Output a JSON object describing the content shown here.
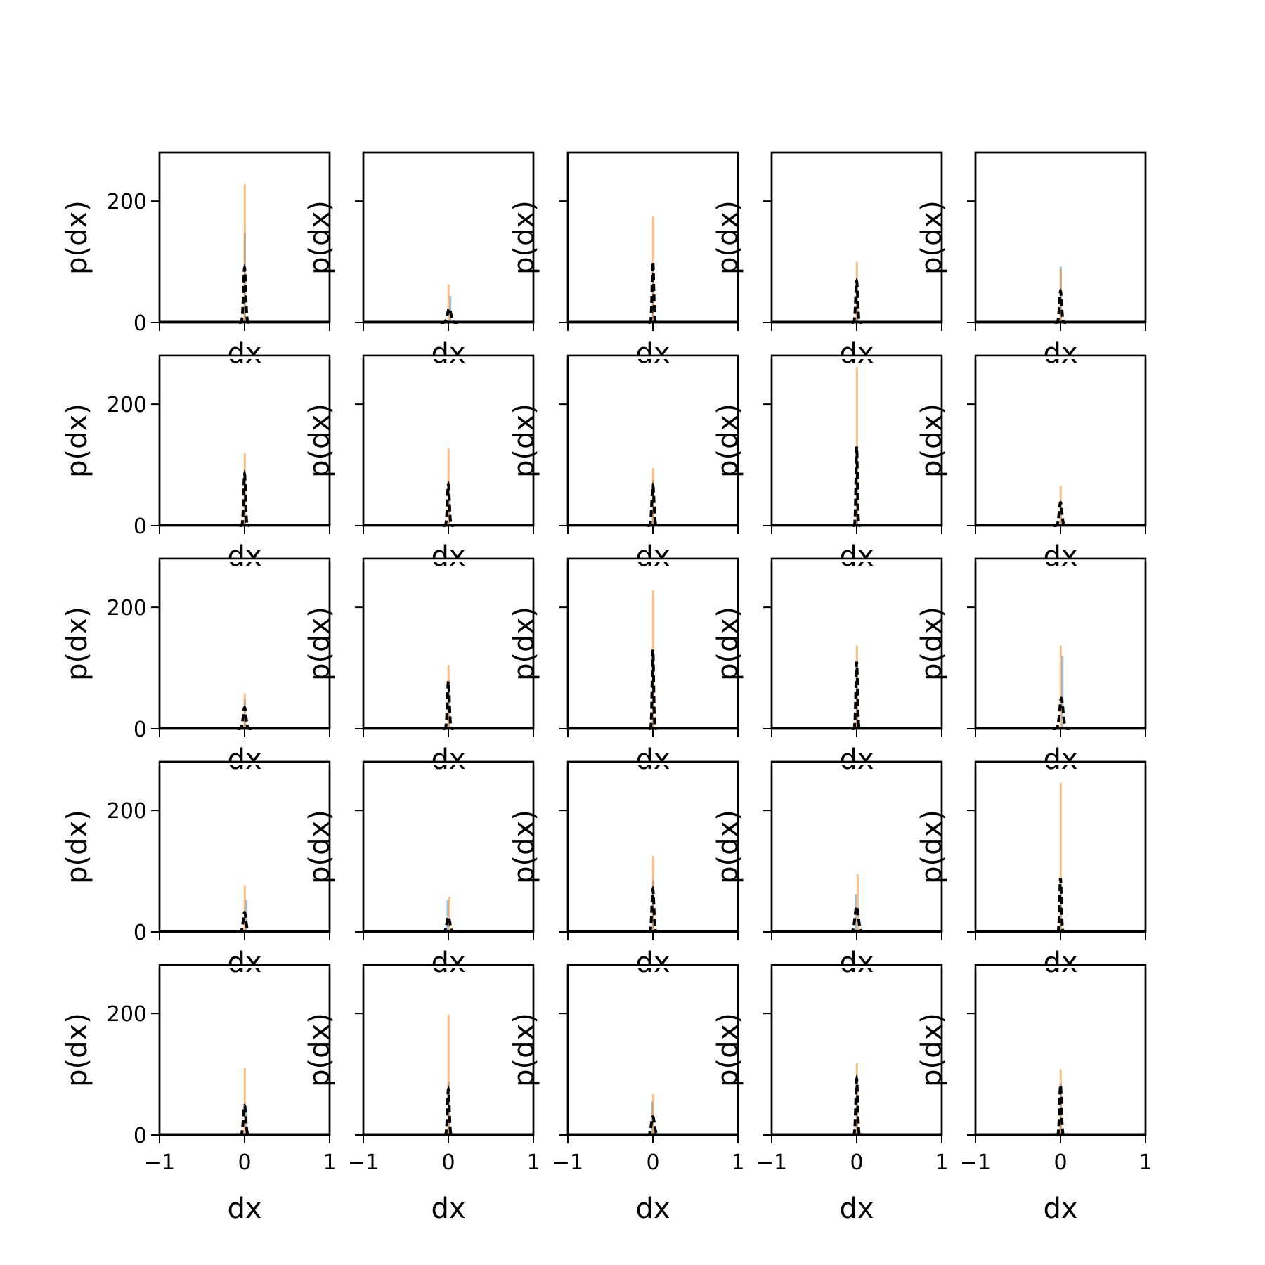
{
  "figure": {
    "grid_rows": 5,
    "grid_cols": 5,
    "colors": {
      "blue_hist": "#1f77b4",
      "orange_hist": "#ff7f0e",
      "dashed_curve": "#000000",
      "frame": "#000000",
      "background": "#ffffff"
    }
  },
  "chart_data": {
    "type": "histogram-grid",
    "shared_axes": {
      "xlabel": "dx",
      "ylabel": "p(dx)",
      "xlim": [
        -1,
        1
      ],
      "ylim": [
        0,
        280
      ],
      "xticks": [
        -1,
        0,
        1
      ],
      "xtick_labels": [
        "−1",
        "0",
        "1"
      ],
      "yticks": [
        0,
        200
      ],
      "ytick_labels": [
        "0",
        "200"
      ],
      "grid": false,
      "legend": "none"
    },
    "series_style": [
      {
        "key": "blue",
        "kind": "histogram",
        "color": "#1f77b4",
        "alpha": 0.45
      },
      {
        "key": "orange",
        "kind": "histogram",
        "color": "#ff7f0e",
        "alpha": 0.5
      },
      {
        "key": "curve",
        "kind": "dashed-line",
        "color": "#000000"
      }
    ],
    "panels": [
      {
        "row": 0,
        "col": 0,
        "blue": {
          "center": 0.0,
          "width": 0.02,
          "height": 148
        },
        "orange": {
          "center": 0.0,
          "width": 0.02,
          "height": 228
        },
        "curve": {
          "center": 0.0,
          "sigma": 0.013,
          "height": 90
        }
      },
      {
        "row": 0,
        "col": 1,
        "blue": {
          "center": 0.02,
          "width": 0.02,
          "height": 44
        },
        "orange": {
          "center": 0.0,
          "width": 0.02,
          "height": 63
        },
        "curve": {
          "center": 0.01,
          "sigma": 0.02,
          "height": 23
        }
      },
      {
        "row": 0,
        "col": 2,
        "blue": {
          "center": 0.0,
          "width": 0.02,
          "height": 92
        },
        "orange": {
          "center": 0.0,
          "width": 0.02,
          "height": 175
        },
        "curve": {
          "center": 0.0,
          "sigma": 0.01,
          "height": 100
        }
      },
      {
        "row": 0,
        "col": 3,
        "blue": {
          "center": 0.0,
          "width": 0.02,
          "height": 70
        },
        "orange": {
          "center": 0.0,
          "width": 0.02,
          "height": 100
        },
        "curve": {
          "center": 0.0,
          "sigma": 0.012,
          "height": 68
        }
      },
      {
        "row": 0,
        "col": 4,
        "blue": {
          "center": 0.0,
          "width": 0.02,
          "height": 92
        },
        "orange": {
          "center": 0.0,
          "width": 0.02,
          "height": 88
        },
        "curve": {
          "center": 0.0,
          "sigma": 0.013,
          "height": 52
        }
      },
      {
        "row": 1,
        "col": 0,
        "blue": {
          "center": 0.0,
          "width": 0.02,
          "height": 85
        },
        "orange": {
          "center": 0.0,
          "width": 0.02,
          "height": 120
        },
        "curve": {
          "center": 0.0,
          "sigma": 0.011,
          "height": 85
        }
      },
      {
        "row": 1,
        "col": 1,
        "blue": {
          "center": 0.0,
          "width": 0.02,
          "height": 72
        },
        "orange": {
          "center": 0.0,
          "width": 0.02,
          "height": 127
        },
        "curve": {
          "center": 0.0,
          "sigma": 0.012,
          "height": 68
        }
      },
      {
        "row": 1,
        "col": 2,
        "blue": {
          "center": 0.0,
          "width": 0.02,
          "height": 75
        },
        "orange": {
          "center": 0.0,
          "width": 0.02,
          "height": 95
        },
        "curve": {
          "center": 0.0,
          "sigma": 0.013,
          "height": 66
        }
      },
      {
        "row": 1,
        "col": 3,
        "blue": {
          "center": 0.0,
          "width": 0.02,
          "height": 128
        },
        "orange": {
          "center": 0.0,
          "width": 0.02,
          "height": 262
        },
        "curve": {
          "center": 0.0,
          "sigma": 0.009,
          "height": 130
        }
      },
      {
        "row": 1,
        "col": 4,
        "blue": {
          "center": 0.0,
          "width": 0.02,
          "height": 40
        },
        "orange": {
          "center": 0.0,
          "width": 0.02,
          "height": 65
        },
        "curve": {
          "center": 0.0,
          "sigma": 0.016,
          "height": 38
        }
      },
      {
        "row": 2,
        "col": 0,
        "blue": {
          "center": 0.0,
          "width": 0.02,
          "height": 48
        },
        "orange": {
          "center": 0.0,
          "width": 0.02,
          "height": 58
        },
        "curve": {
          "center": 0.0,
          "sigma": 0.016,
          "height": 35
        }
      },
      {
        "row": 2,
        "col": 1,
        "blue": {
          "center": 0.0,
          "width": 0.02,
          "height": 80
        },
        "orange": {
          "center": 0.0,
          "width": 0.02,
          "height": 105
        },
        "curve": {
          "center": 0.0,
          "sigma": 0.012,
          "height": 78
        }
      },
      {
        "row": 2,
        "col": 2,
        "blue": {
          "center": 0.0,
          "width": 0.02,
          "height": 130
        },
        "orange": {
          "center": 0.0,
          "width": 0.02,
          "height": 228
        },
        "curve": {
          "center": 0.0,
          "sigma": 0.009,
          "height": 130
        }
      },
      {
        "row": 2,
        "col": 3,
        "blue": {
          "center": 0.0,
          "width": 0.02,
          "height": 112
        },
        "orange": {
          "center": 0.0,
          "width": 0.02,
          "height": 137
        },
        "curve": {
          "center": 0.0,
          "sigma": 0.01,
          "height": 110
        }
      },
      {
        "row": 2,
        "col": 4,
        "blue": {
          "center": 0.02,
          "width": 0.02,
          "height": 120
        },
        "orange": {
          "center": 0.0,
          "width": 0.02,
          "height": 137
        },
        "curve": {
          "center": 0.01,
          "sigma": 0.02,
          "height": 50
        }
      },
      {
        "row": 3,
        "col": 0,
        "blue": {
          "center": 0.02,
          "width": 0.02,
          "height": 52
        },
        "orange": {
          "center": 0.0,
          "width": 0.02,
          "height": 77
        },
        "curve": {
          "center": 0.0,
          "sigma": 0.016,
          "height": 32
        }
      },
      {
        "row": 3,
        "col": 1,
        "blue": {
          "center": -0.01,
          "width": 0.02,
          "height": 52
        },
        "orange": {
          "center": 0.01,
          "width": 0.02,
          "height": 58
        },
        "curve": {
          "center": 0.0,
          "sigma": 0.018,
          "height": 25
        }
      },
      {
        "row": 3,
        "col": 2,
        "blue": {
          "center": 0.0,
          "width": 0.02,
          "height": 85
        },
        "orange": {
          "center": 0.0,
          "width": 0.02,
          "height": 125
        },
        "curve": {
          "center": 0.0,
          "sigma": 0.012,
          "height": 70
        }
      },
      {
        "row": 3,
        "col": 3,
        "blue": {
          "center": -0.01,
          "width": 0.02,
          "height": 62
        },
        "orange": {
          "center": 0.01,
          "width": 0.02,
          "height": 95
        },
        "curve": {
          "center": 0.0,
          "sigma": 0.02,
          "height": 42
        }
      },
      {
        "row": 3,
        "col": 4,
        "blue": {
          "center": 0.0,
          "width": 0.02,
          "height": 78
        },
        "orange": {
          "center": 0.0,
          "width": 0.02,
          "height": 245
        },
        "curve": {
          "center": 0.0,
          "sigma": 0.01,
          "height": 88
        }
      },
      {
        "row": 4,
        "col": 0,
        "blue": {
          "center": 0.02,
          "width": 0.02,
          "height": 48
        },
        "orange": {
          "center": 0.0,
          "width": 0.02,
          "height": 110
        },
        "curve": {
          "center": 0.0,
          "sigma": 0.014,
          "height": 48
        }
      },
      {
        "row": 4,
        "col": 1,
        "blue": {
          "center": 0.0,
          "width": 0.02,
          "height": 88
        },
        "orange": {
          "center": 0.0,
          "width": 0.02,
          "height": 198
        },
        "curve": {
          "center": 0.0,
          "sigma": 0.011,
          "height": 75
        }
      },
      {
        "row": 4,
        "col": 2,
        "blue": {
          "center": -0.01,
          "width": 0.02,
          "height": 55
        },
        "orange": {
          "center": 0.0,
          "width": 0.02,
          "height": 68
        },
        "curve": {
          "center": 0.0,
          "sigma": 0.018,
          "height": 30
        }
      },
      {
        "row": 4,
        "col": 3,
        "blue": {
          "center": 0.0,
          "width": 0.02,
          "height": 90
        },
        "orange": {
          "center": 0.0,
          "width": 0.02,
          "height": 118
        },
        "curve": {
          "center": 0.0,
          "sigma": 0.011,
          "height": 92
        }
      },
      {
        "row": 4,
        "col": 4,
        "blue": {
          "center": 0.0,
          "width": 0.02,
          "height": 85
        },
        "orange": {
          "center": 0.0,
          "width": 0.02,
          "height": 108
        },
        "curve": {
          "center": 0.0,
          "sigma": 0.011,
          "height": 82
        }
      }
    ]
  }
}
